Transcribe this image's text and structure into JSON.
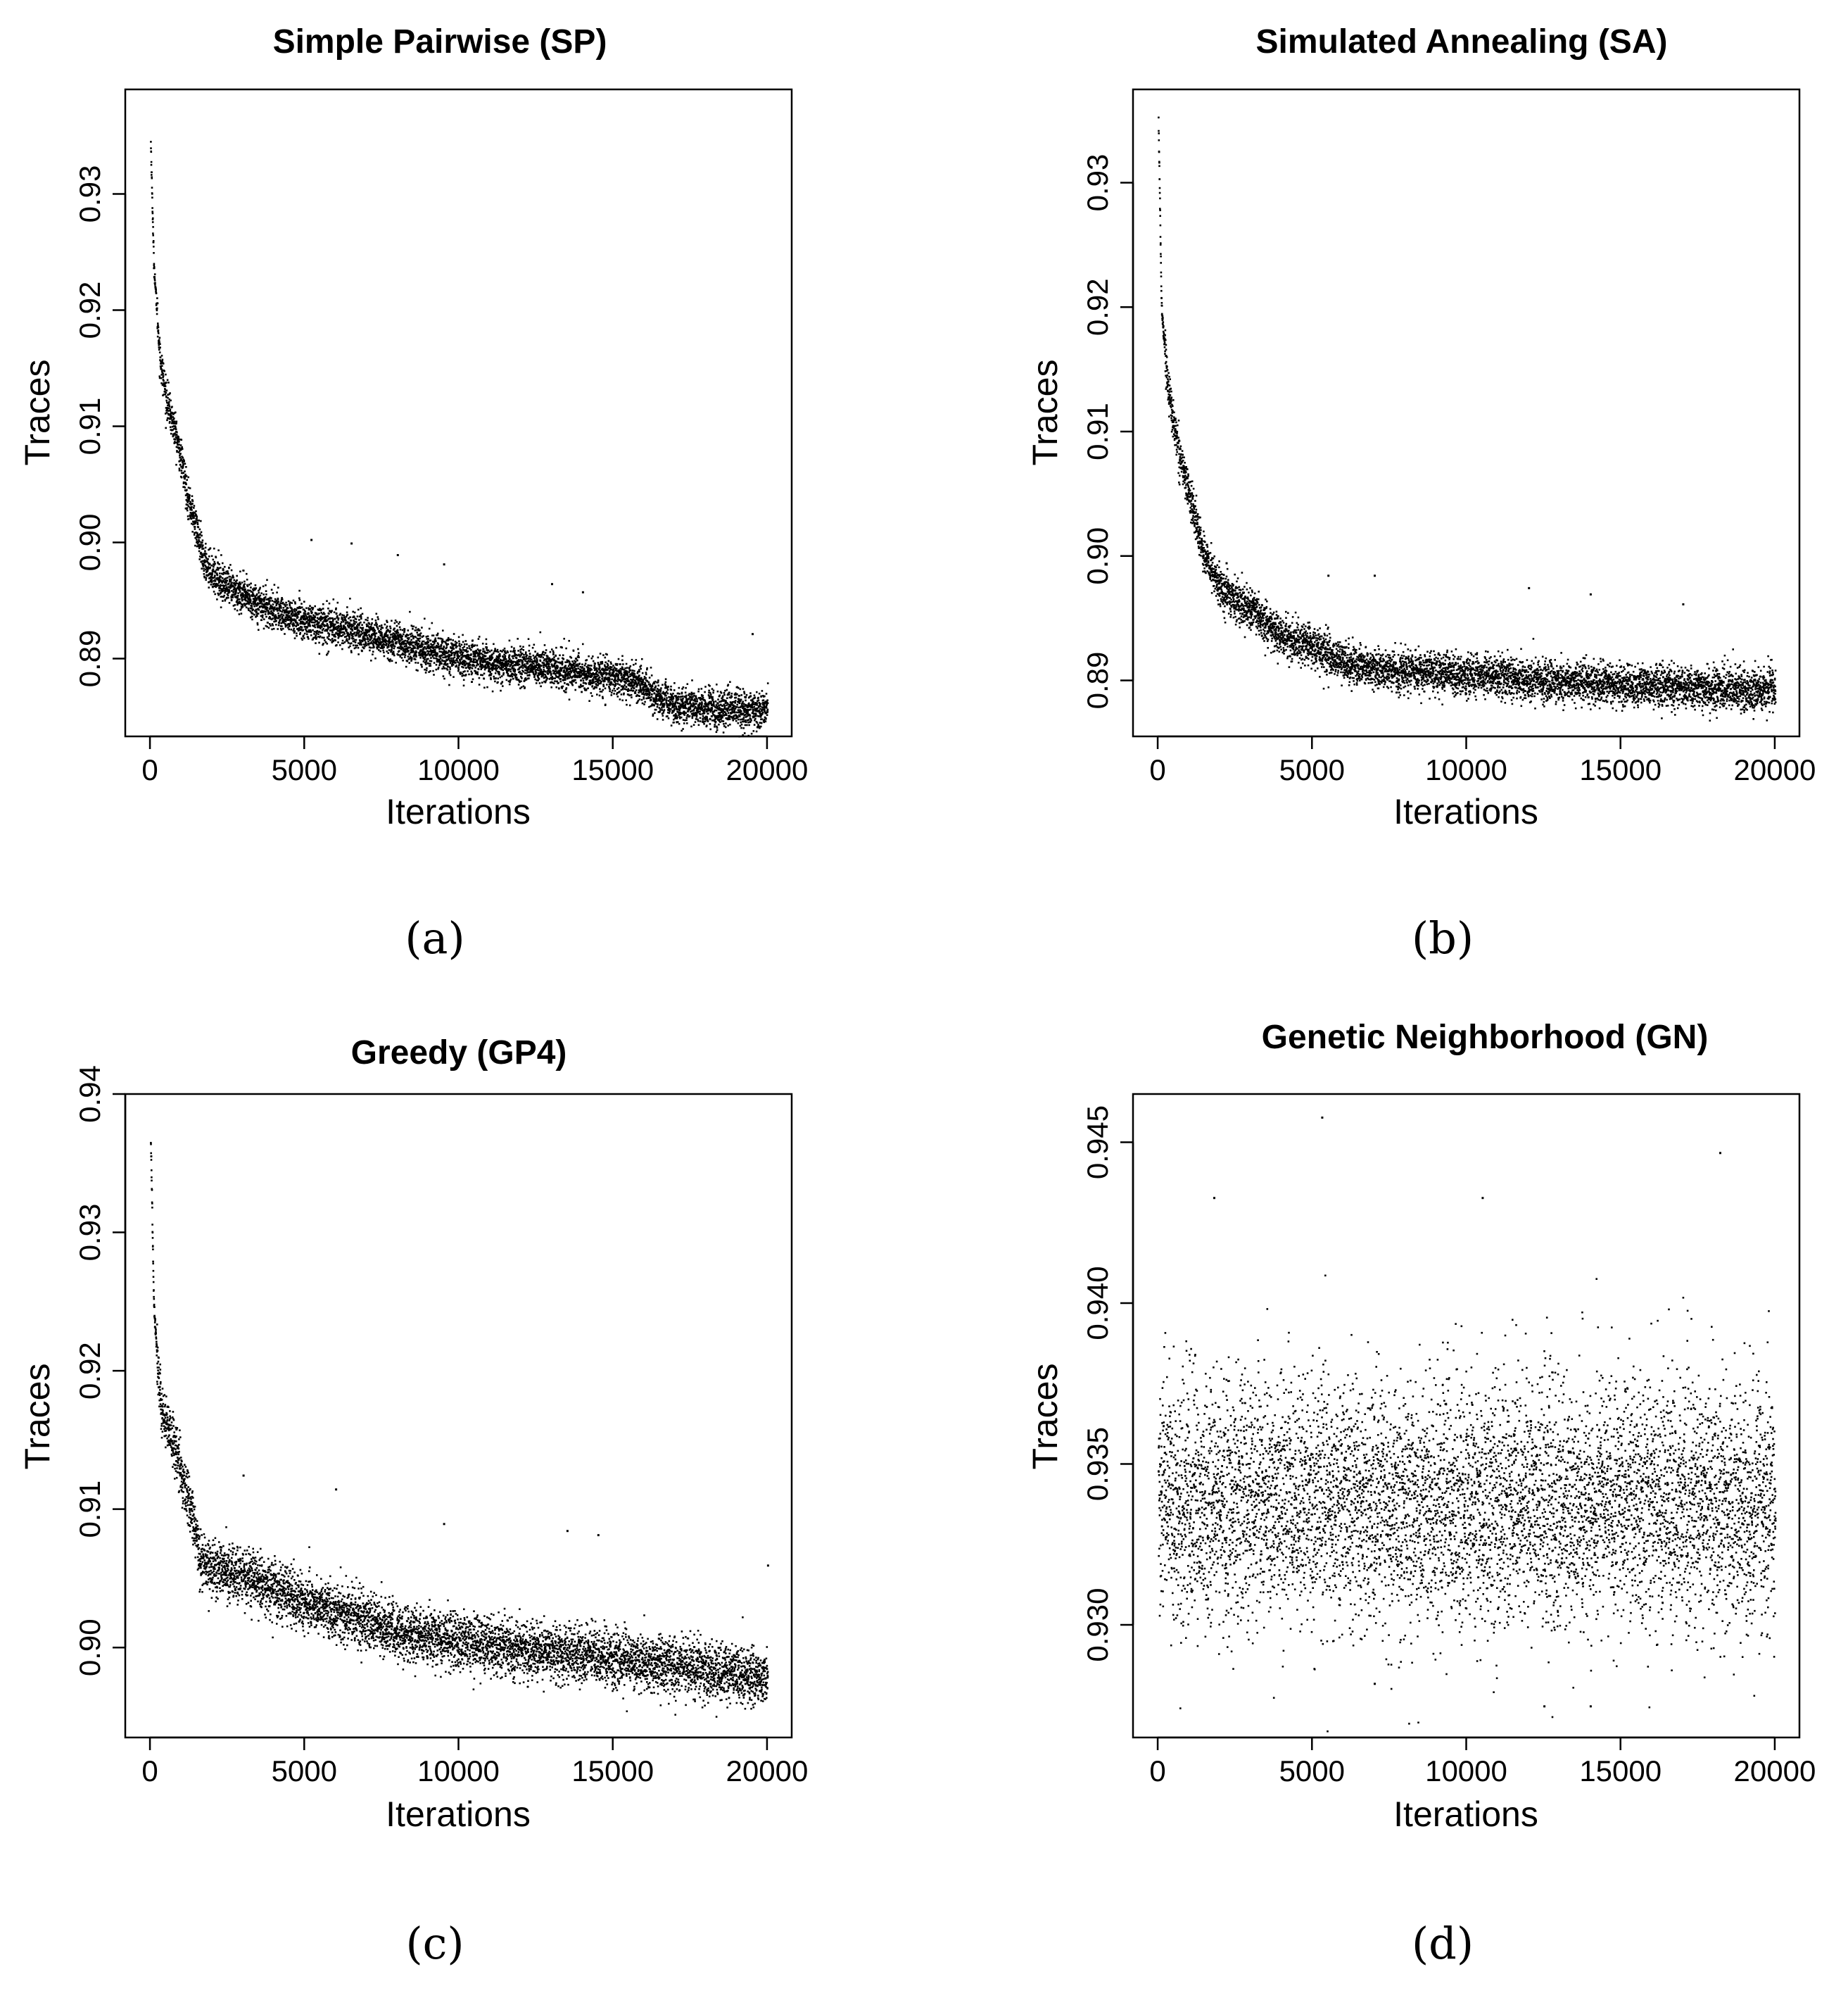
{
  "chart_data": [
    {
      "type": "scatter",
      "title": "Simple Pairwise (SP)",
      "xlabel": "Iterations",
      "ylabel": "Traces",
      "xlim": [
        -800,
        20800
      ],
      "ylim": [
        0.8833,
        0.939
      ],
      "xticks": [
        0,
        5000,
        10000,
        15000,
        20000
      ],
      "yticks": [
        0.89,
        0.9,
        0.91,
        0.92,
        0.93
      ],
      "ytick_labels": [
        "0.89",
        "0.90",
        "0.91",
        "0.92",
        "0.93"
      ],
      "trend_x": [
        0,
        100,
        300,
        500,
        800,
        1000,
        1200,
        1500,
        1700,
        2000,
        2500,
        3000,
        4000,
        5000,
        6000,
        7000,
        8000,
        9000,
        10000,
        11000,
        12000,
        13000,
        14000,
        15000,
        15800,
        16500,
        17000,
        18000,
        19000,
        20000
      ],
      "trend_y": [
        0.9345,
        0.924,
        0.916,
        0.9125,
        0.9095,
        0.907,
        0.904,
        0.901,
        0.8985,
        0.8975,
        0.8962,
        0.8955,
        0.8942,
        0.8932,
        0.8928,
        0.8922,
        0.8915,
        0.8908,
        0.8902,
        0.8897,
        0.8895,
        0.8892,
        0.8888,
        0.8885,
        0.888,
        0.8865,
        0.886,
        0.8858,
        0.8857,
        0.8856
      ],
      "noise_sd": 0.0008,
      "n_points": 6000,
      "outliers": [
        [
          5200,
          0.9003
        ],
        [
          6500,
          0.9
        ],
        [
          8000,
          0.899
        ],
        [
          9500,
          0.8982
        ],
        [
          13000,
          0.8965
        ],
        [
          14000,
          0.8958
        ],
        [
          19500,
          0.8922
        ]
      ],
      "caption": "(a)"
    },
    {
      "type": "scatter",
      "title": "Simulated Annealing (SA)",
      "xlabel": "Iterations",
      "ylabel": "Traces",
      "xlim": [
        -800,
        20800
      ],
      "ylim": [
        0.8855,
        0.9375
      ],
      "xticks": [
        0,
        5000,
        10000,
        15000,
        20000
      ],
      "yticks": [
        0.89,
        0.9,
        0.91,
        0.92,
        0.93
      ],
      "ytick_labels": [
        "0.89",
        "0.90",
        "0.91",
        "0.92",
        "0.93"
      ],
      "trend_x": [
        0,
        100,
        300,
        500,
        800,
        1000,
        1200,
        1500,
        2000,
        2500,
        3000,
        3500,
        4000,
        5000,
        6000,
        7000,
        8000,
        10000,
        12000,
        14000,
        16000,
        18000,
        20000
      ],
      "trend_y": [
        0.935,
        0.92,
        0.914,
        0.9105,
        0.907,
        0.905,
        0.903,
        0.9,
        0.8975,
        0.8965,
        0.8958,
        0.8945,
        0.8935,
        0.8928,
        0.8915,
        0.891,
        0.8908,
        0.8905,
        0.8902,
        0.8898,
        0.8896,
        0.8894,
        0.8893
      ],
      "noise_sd": 0.0008,
      "n_points": 6000,
      "outliers": [
        [
          2200,
          0.8995
        ],
        [
          5500,
          0.8985
        ],
        [
          7000,
          0.8985
        ],
        [
          12000,
          0.8975
        ],
        [
          14000,
          0.897
        ],
        [
          17000,
          0.8962
        ]
      ],
      "caption": "(b)"
    },
    {
      "type": "scatter",
      "title": "Greedy (GP4)",
      "xlabel": "Iterations",
      "ylabel": "Traces",
      "xlim": [
        -800,
        20800
      ],
      "ylim": [
        0.8935,
        0.94
      ],
      "xticks": [
        0,
        5000,
        10000,
        15000,
        20000
      ],
      "yticks": [
        0.9,
        0.91,
        0.92,
        0.93,
        0.94
      ],
      "ytick_labels": [
        "0.90",
        "0.91",
        "0.92",
        "0.93",
        "0.94"
      ],
      "trend_x": [
        0,
        100,
        300,
        500,
        800,
        1000,
        1300,
        1600,
        2000,
        3000,
        4000,
        5000,
        6000,
        7000,
        8000,
        10000,
        12000,
        14000,
        16000,
        18000,
        20000
      ],
      "trend_y": [
        0.937,
        0.925,
        0.918,
        0.916,
        0.9145,
        0.9125,
        0.91,
        0.9065,
        0.9058,
        0.9052,
        0.9042,
        0.9033,
        0.9027,
        0.902,
        0.9012,
        0.9005,
        0.9,
        0.8995,
        0.899,
        0.8985,
        0.8978
      ],
      "noise_sd": 0.001,
      "n_points": 6000,
      "outliers": [
        [
          3000,
          0.9125
        ],
        [
          6000,
          0.9115
        ],
        [
          9500,
          0.909
        ],
        [
          13500,
          0.9085
        ],
        [
          14500,
          0.9082
        ],
        [
          20000,
          0.906
        ]
      ],
      "caption": "(c)"
    },
    {
      "type": "scatter",
      "title": "Genetic Neighborhood (GN)",
      "xlabel": "Iterations",
      "ylabel": "Traces",
      "xlim": [
        -800,
        20800
      ],
      "ylim": [
        0.9265,
        0.9465
      ],
      "xticks": [
        0,
        5000,
        10000,
        15000,
        20000
      ],
      "yticks": [
        0.93,
        0.935,
        0.94,
        0.945
      ],
      "ytick_labels": [
        "0.930",
        "0.935",
        "0.940",
        "0.945"
      ],
      "trend_x": [
        0,
        20000
      ],
      "trend_y": [
        0.9338,
        0.9338
      ],
      "noise_sd": 0.0019,
      "n_points": 7000,
      "outliers": [
        [
          5300,
          0.9458
        ],
        [
          18200,
          0.9447
        ],
        [
          1800,
          0.9433
        ],
        [
          10500,
          0.9433
        ],
        [
          12500,
          0.9275
        ],
        [
          14000,
          0.9275
        ],
        [
          7000,
          0.9282
        ]
      ],
      "caption": "(d)"
    }
  ]
}
